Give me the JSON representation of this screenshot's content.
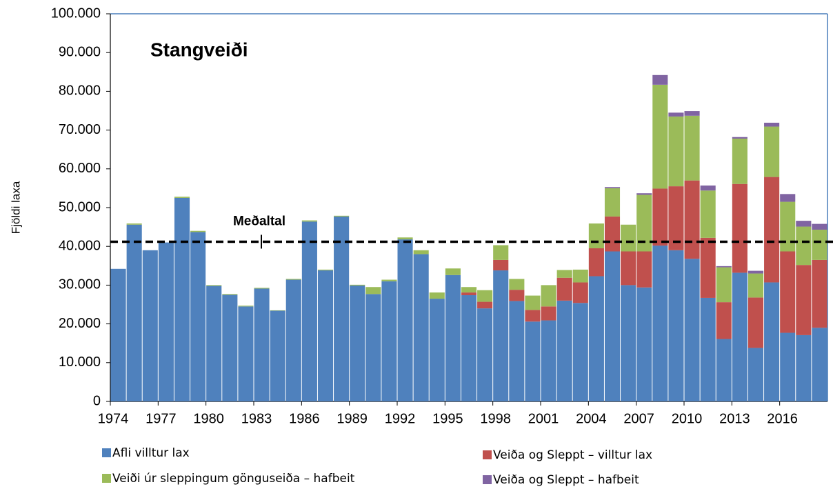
{
  "chart_data": {
    "type": "stacked_bar",
    "title": "Stangveiði",
    "y_label": "Fjöldi laxa",
    "categories": [
      "1974",
      null,
      null,
      "1977",
      null,
      null,
      "1980",
      null,
      null,
      "1983",
      null,
      null,
      "1986",
      null,
      null,
      "1989",
      null,
      null,
      "1992",
      null,
      null,
      "1995",
      null,
      null,
      "1998",
      null,
      null,
      "2001",
      null,
      null,
      "2004",
      null,
      null,
      "2007",
      null,
      null,
      "2010",
      null,
      null,
      "2013",
      null,
      null,
      "2016",
      null,
      null
    ],
    "series": [
      {
        "name": "Afli villtur lax",
        "color": "#4f81bd",
        "values": [
          34200,
          45600,
          39000,
          41000,
          52500,
          43700,
          29800,
          27500,
          24500,
          29100,
          23400,
          31400,
          46400,
          33800,
          47700,
          29900,
          27700,
          31000,
          41800,
          38000,
          26500,
          32600,
          27400,
          24000,
          33800,
          25900,
          20600,
          20900,
          26000,
          25400,
          32300,
          38700,
          30000,
          29400,
          40200,
          39000,
          36800,
          26700,
          16100,
          33200,
          13800,
          30700,
          17700,
          17100,
          19000
        ]
      },
      {
        "name": "Veiða og Sleppt – villtur lax",
        "color": "#c0504d",
        "values": [
          0,
          0,
          0,
          0,
          0,
          0,
          0,
          0,
          0,
          0,
          0,
          0,
          0,
          0,
          0,
          0,
          0,
          0,
          0,
          0,
          0,
          0,
          700,
          1700,
          2700,
          2900,
          3000,
          3600,
          5900,
          5300,
          7200,
          9000,
          8700,
          9300,
          14700,
          16500,
          20200,
          15500,
          9500,
          22900,
          13000,
          27200,
          21000,
          18100,
          17500
        ]
      },
      {
        "name": "Veiði úr sleppingum gönguseiða – hafbeit",
        "color": "#9bbb59",
        "values": [
          0,
          300,
          0,
          0,
          300,
          300,
          200,
          200,
          200,
          200,
          100,
          200,
          300,
          200,
          200,
          200,
          1800,
          400,
          500,
          1000,
          1600,
          1700,
          1400,
          3000,
          3800,
          2800,
          3700,
          5500,
          2000,
          3300,
          6400,
          7300,
          6900,
          14600,
          26800,
          18000,
          16700,
          12200,
          9000,
          11700,
          6200,
          13000,
          12800,
          9900,
          7800
        ]
      },
      {
        "name": "Veiða og Sleppt – hafbeit",
        "color": "#8064a2",
        "values": [
          0,
          0,
          0,
          0,
          0,
          0,
          0,
          0,
          0,
          0,
          0,
          0,
          0,
          0,
          0,
          0,
          0,
          0,
          0,
          0,
          0,
          0,
          0,
          0,
          0,
          0,
          0,
          0,
          0,
          0,
          0,
          300,
          0,
          400,
          2500,
          1000,
          1200,
          1300,
          300,
          400,
          700,
          1000,
          2000,
          1500,
          1500
        ]
      }
    ],
    "average_line": {
      "label": "Meðaltal",
      "value": 41200
    },
    "ylim": [
      0,
      100000
    ],
    "yticks": [
      0,
      {
        "value": 10000,
        "label": "10.000"
      },
      {
        "value": 20000,
        "label": "20.000"
      },
      {
        "value": 30000,
        "label": "30.000"
      },
      {
        "value": 40000,
        "label": "40.000"
      },
      {
        "value": 50000,
        "label": "50.000"
      },
      {
        "value": 60000,
        "label": "60.000"
      },
      {
        "value": 70000,
        "label": "70.000"
      },
      {
        "value": 80000,
        "label": "80.000"
      },
      {
        "value": 90000,
        "label": "90.000"
      },
      {
        "value": 100000,
        "label": "100.000"
      }
    ],
    "grid": false
  }
}
